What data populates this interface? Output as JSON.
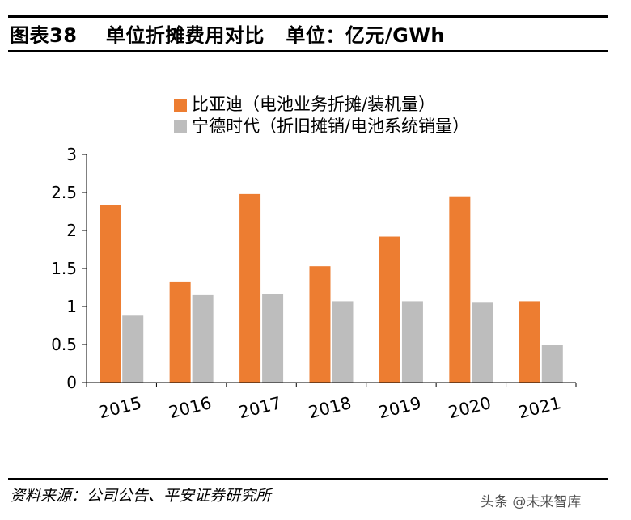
{
  "header": {
    "title": "图表38    单位折摊费用对比   单位：亿元/GWh"
  },
  "footer": {
    "source": "资料来源：公司公告、平安证券研究所",
    "watermark": "头条 @未来智库"
  },
  "colors": {
    "series_byd": "#ED7D31",
    "series_catl": "#BDBDBD"
  },
  "chart_data": {
    "type": "bar",
    "categories": [
      "2015",
      "2016",
      "2017",
      "2018",
      "2019",
      "2020",
      "2021"
    ],
    "series": [
      {
        "name": "比亚迪（电池业务折摊/装机量）",
        "values": [
          2.33,
          1.32,
          2.48,
          1.53,
          1.92,
          2.45,
          1.07
        ]
      },
      {
        "name": "宁德时代（折旧摊销/电池系统销量）",
        "values": [
          0.88,
          1.15,
          1.17,
          1.07,
          1.07,
          1.05,
          0.5
        ]
      }
    ],
    "ylim": [
      0,
      3
    ],
    "yticks": [
      "0",
      "0.5",
      "1",
      "1.5",
      "2",
      "2.5",
      "3"
    ],
    "grid": false,
    "legend": "top-left",
    "title": "",
    "xlabel": "",
    "ylabel": ""
  }
}
